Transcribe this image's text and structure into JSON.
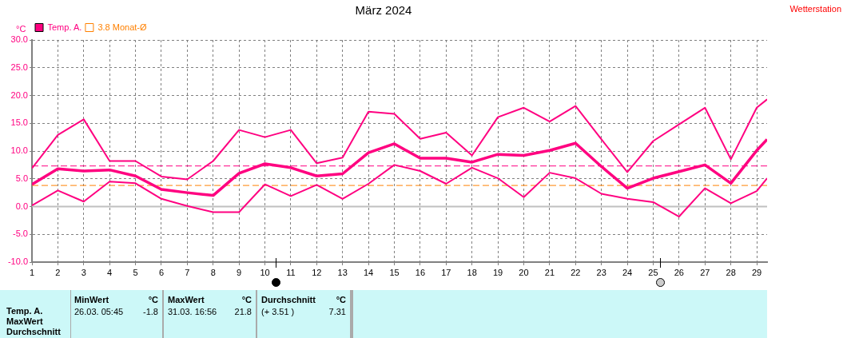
{
  "chart_data": {
    "type": "line",
    "title": "März 2024",
    "ylabel": "°C",
    "x": [
      1,
      2,
      3,
      4,
      5,
      6,
      7,
      8,
      9,
      10,
      11,
      12,
      13,
      14,
      15,
      16,
      17,
      18,
      19,
      20,
      21,
      22,
      23,
      24,
      25,
      26,
      27,
      28,
      29,
      29.4
    ],
    "xlim": [
      1,
      29.4
    ],
    "xticks": [
      1,
      2,
      3,
      4,
      5,
      6,
      7,
      8,
      9,
      10,
      11,
      12,
      13,
      14,
      15,
      16,
      17,
      18,
      19,
      20,
      21,
      22,
      23,
      24,
      25,
      26,
      27,
      28,
      29
    ],
    "ylim": [
      -10,
      30
    ],
    "yticks": [
      {
        "value": -10,
        "label": "-10.0"
      },
      {
        "value": -5,
        "label": "-5.0"
      },
      {
        "value": 0,
        "label": "0.0"
      },
      {
        "value": 5,
        "label": "5.0"
      },
      {
        "value": 10,
        "label": "10.0"
      },
      {
        "value": 15,
        "label": "15.0"
      },
      {
        "value": 20,
        "label": "20.0"
      },
      {
        "value": 25,
        "label": "25.0"
      },
      {
        "value": 30,
        "label": "30.0"
      }
    ],
    "grid": true,
    "legend": "top left",
    "marker": "none",
    "series": [
      {
        "color": "#ff0080",
        "values": [
          6.9,
          12.9,
          15.7,
          8.2,
          8.2,
          5.4,
          4.9,
          8.2,
          13.8,
          12.5,
          13.8,
          7.8,
          8.8,
          17.1,
          16.7,
          12.2,
          13.3,
          9.2,
          16.1,
          17.8,
          15.3,
          18.1,
          12.1,
          6.2,
          11.8,
          14.8,
          17.8,
          8.5,
          17.8,
          19.3
        ]
      },
      {
        "name": "Temp. A.",
        "color": "#ff0080",
        "values": [
          4.0,
          6.8,
          6.4,
          6.6,
          5.5,
          3.1,
          2.5,
          2.0,
          6.0,
          7.7,
          7.0,
          5.5,
          5.9,
          9.7,
          11.3,
          8.7,
          8.7,
          8.0,
          9.4,
          9.2,
          10.1,
          11.4,
          7.2,
          3.3,
          5.1,
          6.3,
          7.5,
          4.2,
          10.1,
          12.1
        ]
      },
      {
        "color": "#ff0080",
        "values": [
          0.2,
          2.9,
          0.9,
          4.5,
          4.2,
          1.4,
          0.1,
          -1.0,
          -1.0,
          4.0,
          1.9,
          3.9,
          1.4,
          4.1,
          7.5,
          6.4,
          4.1,
          7.0,
          5.1,
          1.7,
          6.1,
          5.1,
          2.3,
          1.4,
          0.8,
          -1.8,
          3.3,
          0.6,
          2.8,
          5.1
        ]
      }
    ],
    "ref_lines": [
      {
        "axis": "y",
        "value": 0,
        "color": "#c0c0c0",
        "line_style": "solid"
      },
      {
        "axis": "y",
        "value": 7.31,
        "color": "#ff0080",
        "line_style": "dashed"
      },
      {
        "axis": "y",
        "value": 3.8,
        "label": "3.8 Monat-Ø",
        "color": "#ff8000",
        "line_style": "dashed"
      }
    ],
    "annotations": [
      "Wetterstation",
      "Temp. A.",
      "MaxWert",
      "Durchschnitt",
      "MinWert",
      "°C",
      "26.03.  05:45",
      "-1.8",
      "MaxWert",
      "°C",
      "31.03.  16:56",
      "21.8",
      "Durchschnitt",
      "°C",
      "(+ 3.51 )",
      "7.31"
    ]
  }
}
